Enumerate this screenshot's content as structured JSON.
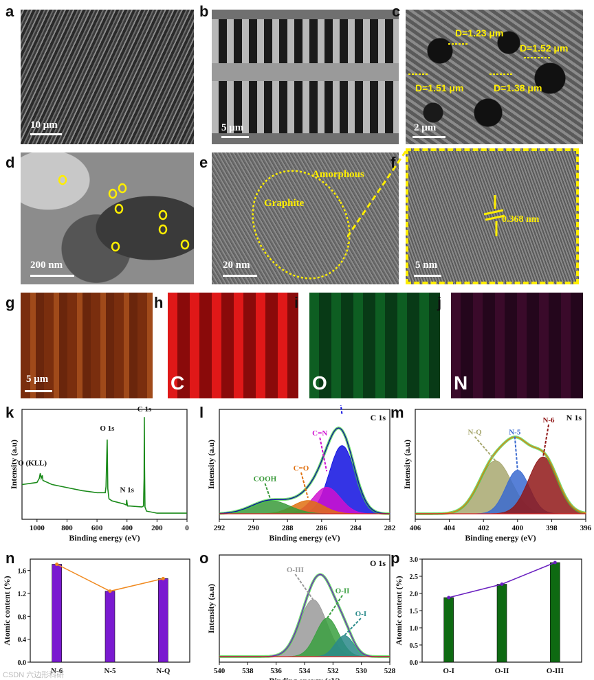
{
  "panel_labels": {
    "a": "a",
    "b": "b",
    "c": "c",
    "d": "d",
    "e": "e",
    "f": "f",
    "g": "g",
    "h": "h",
    "i": "i",
    "j": "j",
    "k": "k",
    "l": "l",
    "m": "m",
    "n": "n",
    "o": "o",
    "p": "p"
  },
  "sem": {
    "a_scale": "10 μm",
    "b_scale": "5 μm",
    "c_scale": "2 μm",
    "c_pores": [
      "D=1.23 μm",
      "D=1.52 μm",
      "D=1.51 μm",
      "D=1.38 μm"
    ]
  },
  "tem": {
    "d_scale": "200 nm",
    "e_scale": "20 nm",
    "e_amorphous": "Amorphous",
    "e_graphite": "Graphite",
    "f_scale": "5 nm",
    "f_spacing": "0.368 nm"
  },
  "eds": {
    "g_scale": "5 μm",
    "h_elem": "C",
    "i_elem": "O",
    "j_elem": "N",
    "colors": {
      "g": "#8a3a12",
      "h": "#c81010",
      "i": "#0e6e2a",
      "j": "#3a0a2a"
    }
  },
  "watermark": "CSDN 六边形科研",
  "chart_data": [
    {
      "panel": "k",
      "type": "line",
      "xlabel": "Binding energy (eV)",
      "ylabel": "Intensity (a.u)",
      "xlim": [
        1100,
        0
      ],
      "xticks": [
        1000,
        800,
        600,
        400,
        200,
        0
      ],
      "annotations": [
        "O (KLL)",
        "O 1s",
        "N 1s",
        "C 1s"
      ],
      "series": [
        {
          "color": "#1a8a1a",
          "x": [
            1100,
            1000,
            985,
            978,
            972,
            965,
            960,
            900,
            800,
            700,
            600,
            545,
            540,
            532,
            528,
            520,
            500,
            420,
            405,
            402,
            398,
            395,
            380,
            300,
            290,
            286,
            284.5,
            283,
            280,
            270,
            200,
            100,
            0
          ],
          "y": [
            0.34,
            0.36,
            0.4,
            0.45,
            0.4,
            0.43,
            0.38,
            0.34,
            0.31,
            0.28,
            0.26,
            0.26,
            0.32,
            0.78,
            0.3,
            0.2,
            0.18,
            0.15,
            0.14,
            0.19,
            0.14,
            0.13,
            0.13,
            0.12,
            0.13,
            0.4,
            1.0,
            0.5,
            0.12,
            0.08,
            0.06,
            0.06,
            0.06
          ]
        }
      ]
    },
    {
      "panel": "l",
      "type": "line",
      "title": "C 1s",
      "xlabel": "Binding energy (eV)",
      "ylabel": "Intensity (a.u)",
      "xlim": [
        292,
        282
      ],
      "xticks": [
        292,
        290,
        288,
        286,
        284,
        282
      ],
      "peaks": [
        {
          "name": "C-C",
          "center": 284.8,
          "height": 0.72,
          "width": 0.75,
          "color": "#1010e0"
        },
        {
          "name": "C=N",
          "center": 285.7,
          "height": 0.28,
          "width": 0.8,
          "color": "#d010d0"
        },
        {
          "name": "C=O",
          "center": 286.8,
          "height": 0.14,
          "width": 0.9,
          "color": "#e07010"
        },
        {
          "name": "COOH",
          "center": 289.0,
          "height": 0.14,
          "width": 1.1,
          "color": "#3a9a3a"
        }
      ]
    },
    {
      "panel": "m",
      "type": "line",
      "title": "N 1s",
      "xlabel": "Binding energy (eV)",
      "ylabel": "Intensity (a.u)",
      "xlim": [
        406,
        396
      ],
      "xticks": [
        406,
        404,
        402,
        400,
        398,
        396
      ],
      "peaks": [
        {
          "name": "N-Q",
          "center": 401.3,
          "height": 0.56,
          "width": 0.95,
          "color": "#a8a870"
        },
        {
          "name": "N-5",
          "center": 400.0,
          "height": 0.46,
          "width": 0.7,
          "color": "#3a6ad0"
        },
        {
          "name": "N-6",
          "center": 398.5,
          "height": 0.6,
          "width": 0.85,
          "color": "#901818"
        }
      ]
    },
    {
      "panel": "n",
      "type": "bar",
      "ylabel": "Atomic content (%)",
      "categories": [
        "N-6",
        "N-5",
        "N-Q"
      ],
      "values": [
        1.71,
        1.24,
        1.46
      ],
      "ylim": [
        0,
        1.8
      ],
      "yticks": [
        0.0,
        0.4,
        0.8,
        1.2,
        1.6
      ],
      "bar_color": "#7a1ad0",
      "line_color": "#f08a20"
    },
    {
      "panel": "o",
      "type": "line",
      "title": "O 1s",
      "xlabel": "Binding energy (eV)",
      "ylabel": "Intensity (a.u)",
      "xlim": [
        540,
        528
      ],
      "xticks": [
        540,
        538,
        536,
        534,
        532,
        530,
        528
      ],
      "peaks": [
        {
          "name": "O-III",
          "center": 533.4,
          "height": 0.62,
          "width": 0.95,
          "color": "#9a9a9a"
        },
        {
          "name": "O-II",
          "center": 532.4,
          "height": 0.42,
          "width": 0.8,
          "color": "#3aa040"
        },
        {
          "name": "O-I",
          "center": 531.2,
          "height": 0.23,
          "width": 0.65,
          "color": "#2a8a8a"
        }
      ]
    },
    {
      "panel": "p",
      "type": "bar",
      "ylabel": "Atomic content (%)",
      "categories": [
        "O-I",
        "O-II",
        "O-III"
      ],
      "values": [
        1.88,
        2.27,
        2.9
      ],
      "ylim": [
        0,
        3.0
      ],
      "yticks": [
        0.0,
        0.5,
        1.0,
        1.5,
        2.0,
        2.5,
        3.0
      ],
      "bar_color": "#0e6a12",
      "line_color": "#6a20c0"
    }
  ]
}
